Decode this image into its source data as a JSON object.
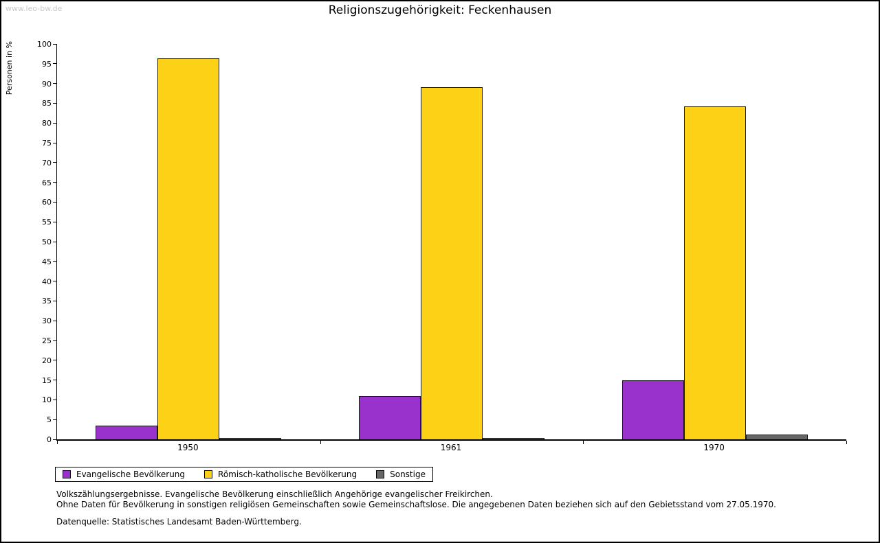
{
  "watermark": "www.leo-bw.de",
  "chart_data": {
    "type": "bar",
    "title": "Religionszugehörigkeit: Feckenhausen",
    "ylabel": "Personen in %",
    "xlabel": "",
    "ylim": [
      0,
      100
    ],
    "ytick_step": 5,
    "grid": false,
    "legend_position": "bottom",
    "categories": [
      "1950",
      "1961",
      "1970"
    ],
    "series": [
      {
        "name": "Evangelische Bevölkerung",
        "color": "#9932cc",
        "values": [
          3.5,
          11,
          15
        ]
      },
      {
        "name": "Römisch-katholische Bevölkerung",
        "color": "#fcd116",
        "values": [
          96.3,
          89,
          84.2
        ]
      },
      {
        "name": "Sonstige",
        "color": "#666666",
        "values": [
          0.3,
          0.3,
          1.2
        ]
      }
    ]
  },
  "footnotes": [
    "Volkszählungsergebnisse. Evangelische Bevölkerung einschließlich Angehörige evangelischer Freikirchen.",
    "Ohne Daten für Bevölkerung in sonstigen religiösen Gemeinschaften sowie Gemeinschaftslose. Die angegebenen Daten beziehen sich auf den Gebietsstand vom 27.05.1970.",
    "Datenquelle: Statistisches Landesamt Baden-Württemberg."
  ]
}
